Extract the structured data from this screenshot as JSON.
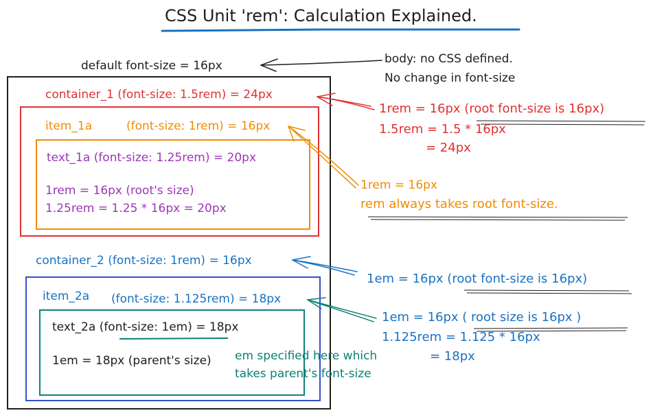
{
  "colors": {
    "ink": "#1e1e1e",
    "red": "#e03131",
    "orange": "#f08c00",
    "purple": "#9c36b5",
    "blue": "#1971c2",
    "teal": "#0c8076"
  },
  "title": "CSS Unit 'rem': Calculation Explained.",
  "default_label": "default font-size = 16px",
  "body_note": {
    "line1": "body: no CSS defined.",
    "line2": "No change in font-size"
  },
  "container_1": {
    "label": "container_1 (font-size: 1.5rem) = 24px",
    "note_line1": "1rem = 16px (root font-size is 16px)",
    "note_line2": "1.5rem = 1.5 * 16px",
    "note_line3": "= 24px"
  },
  "item_1a": {
    "label_name": "item_1a",
    "label_rest": "(font-size: 1rem) = 16px",
    "note_line1": "1rem = 16px",
    "note_line2": "rem always takes root font-size."
  },
  "text_1a": {
    "label": "text_1a (font-size: 1.25rem) = 20px",
    "calc_line1": "1rem = 16px (root's size)",
    "calc_line2": "1.25rem = 1.25 * 16px = 20px"
  },
  "container_2": {
    "label": "container_2 (font-size: 1rem) = 16px",
    "note": "1em = 16px (root font-size is 16px)"
  },
  "item_2a": {
    "label_name": "item_2a",
    "label_rest": "(font-size: 1.125rem) = 18px",
    "note_line1": "1em = 16px ( root size is 16px )",
    "note_line2": "1.125rem = 1.125 * 16px",
    "note_line3": "= 18px"
  },
  "text_2a": {
    "label": "text_2a (font-size: 1em) = 18px",
    "calc_line1": "1em = 18px (parent's size)",
    "note_line1": "em specified here which",
    "note_line2": "takes parent's font-size"
  }
}
